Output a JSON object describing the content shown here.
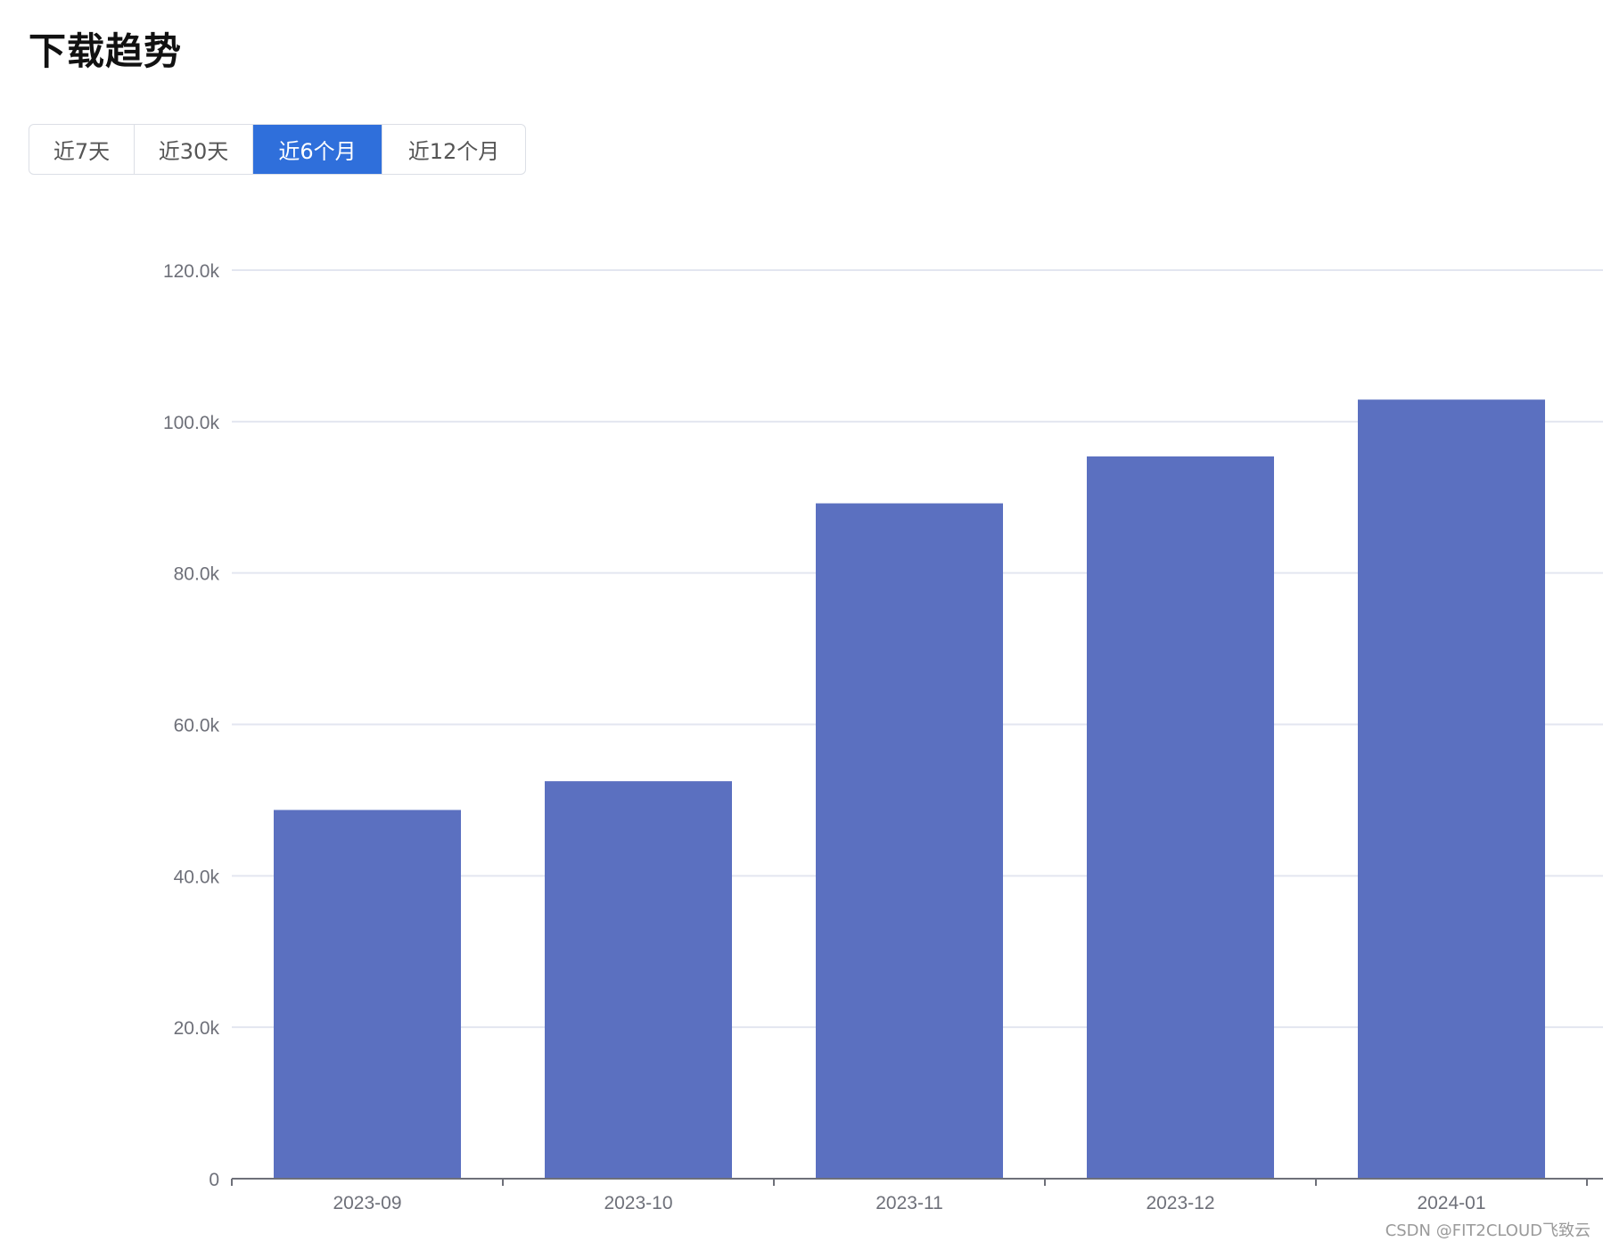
{
  "page": {
    "title": "下载趋势",
    "watermark": "CSDN @FIT2CLOUD飞致云"
  },
  "range_tabs": [
    {
      "label": "近7天",
      "active": false
    },
    {
      "label": "近30天",
      "active": false
    },
    {
      "label": "近6个月",
      "active": true
    },
    {
      "label": "近12个月",
      "active": false
    }
  ],
  "colors": {
    "bar": "#5b70c0",
    "active_tab": "#2f6fdb",
    "grid": "#e3e6f0",
    "axis": "#6e7079",
    "tick_text": "#6e7079"
  },
  "chart_data": {
    "type": "bar",
    "categories": [
      "2023-09",
      "2023-10",
      "2023-11",
      "2023-12",
      "2024-01"
    ],
    "values": [
      48700,
      52500,
      89200,
      95400,
      102900
    ],
    "ylim": [
      0,
      120000
    ],
    "yticks": [
      0,
      20000,
      40000,
      60000,
      80000,
      100000,
      120000
    ],
    "ytick_labels": [
      "0",
      "20.0k",
      "40.0k",
      "60.0k",
      "80.0k",
      "100.0k",
      "120.0k"
    ],
    "grid": true,
    "title": "",
    "xlabel": "",
    "ylabel": ""
  }
}
